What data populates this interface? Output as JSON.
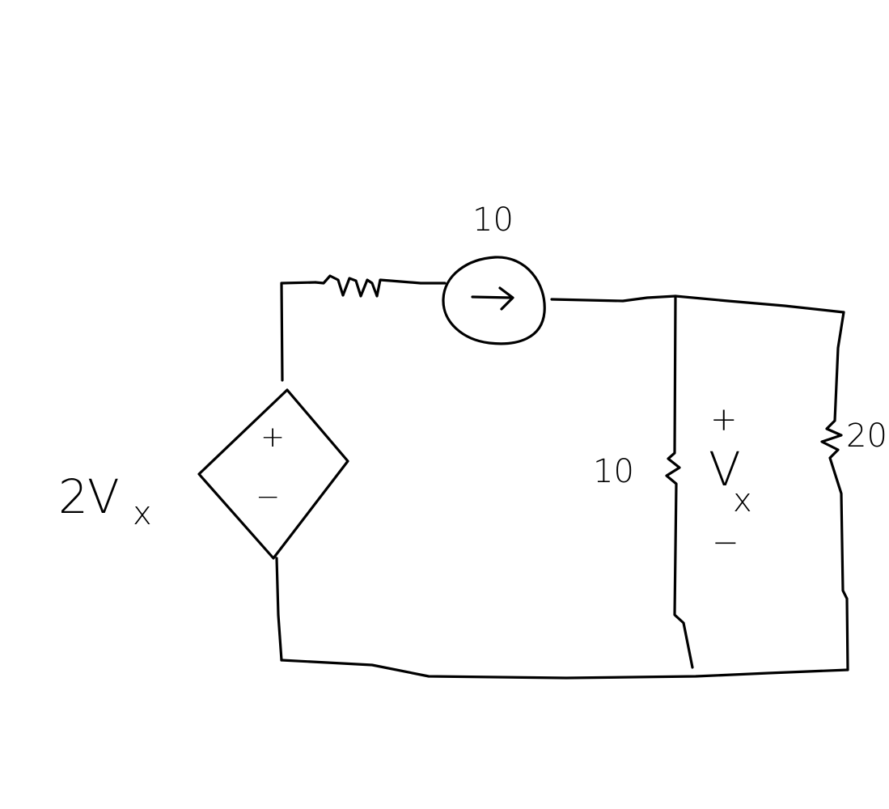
{
  "circuit": {
    "source_label": {
      "coeff": "2",
      "var": "V",
      "sub": "x"
    },
    "source_plus": "+",
    "source_minus": "−",
    "current_source_value": "10",
    "resistor_mid_value": "10",
    "resistor_right_value": "20",
    "vx_plus": "+",
    "vx_var": "V",
    "vx_sub": "x",
    "vx_minus": "−"
  }
}
